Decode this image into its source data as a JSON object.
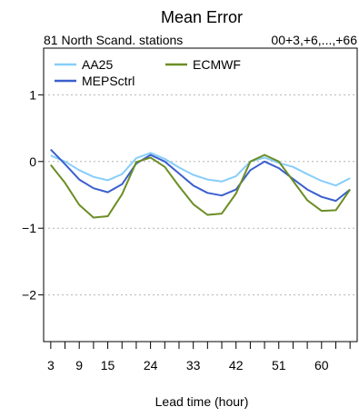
{
  "chart_data": {
    "type": "line",
    "title": "Mean Error",
    "subtitle_left": "81 North Scand. stations",
    "subtitle_right": "00+3,+6,...,+66",
    "xlabel": "Lead time (hour)",
    "ylabel": "",
    "xlim": [
      1.5,
      67.5
    ],
    "ylim": [
      -2.7,
      1.7
    ],
    "x_ticks": [
      3,
      6,
      9,
      12,
      15,
      18,
      21,
      24,
      27,
      30,
      33,
      36,
      39,
      42,
      45,
      48,
      51,
      54,
      57,
      60,
      63,
      66
    ],
    "x_tick_labels": [
      {
        "x": 3,
        "label": "3"
      },
      {
        "x": 9,
        "label": "9"
      },
      {
        "x": 15,
        "label": "15"
      },
      {
        "x": 24,
        "label": "24"
      },
      {
        "x": 33,
        "label": "33"
      },
      {
        "x": 42,
        "label": "42"
      },
      {
        "x": 51,
        "label": "51"
      },
      {
        "x": 60,
        "label": "60"
      }
    ],
    "y_ticks": [
      {
        "y": 1,
        "label": "1"
      },
      {
        "y": 0,
        "label": "0"
      },
      {
        "y": -1,
        "label": "−1"
      },
      {
        "y": -2,
        "label": "−2"
      }
    ],
    "grid": "horizontal dotted",
    "legend_position": "top-left",
    "x": [
      3,
      6,
      9,
      12,
      15,
      18,
      21,
      24,
      27,
      30,
      33,
      36,
      39,
      42,
      45,
      48,
      51,
      54,
      57,
      60,
      63,
      66
    ],
    "series": [
      {
        "name": "AA25",
        "color": "#87cefa",
        "legend_col": 0,
        "legend_row": 0,
        "values": [
          0.09,
          0.0,
          -0.13,
          -0.23,
          -0.28,
          -0.19,
          0.05,
          0.13,
          0.04,
          -0.09,
          -0.2,
          -0.27,
          -0.3,
          -0.22,
          0.0,
          0.06,
          -0.02,
          -0.08,
          -0.19,
          -0.29,
          -0.36,
          -0.25
        ]
      },
      {
        "name": "MEPSctrl",
        "color": "#3a5fcd",
        "legend_col": 0,
        "legend_row": 1,
        "values": [
          0.18,
          -0.04,
          -0.27,
          -0.4,
          -0.46,
          -0.34,
          -0.03,
          0.1,
          0.0,
          -0.18,
          -0.36,
          -0.47,
          -0.51,
          -0.42,
          -0.13,
          0.0,
          -0.1,
          -0.26,
          -0.42,
          -0.53,
          -0.59,
          -0.42
        ]
      },
      {
        "name": "ECMWF",
        "color": "#6b8e23",
        "legend_col": 1,
        "legend_row": 0,
        "values": [
          -0.05,
          -0.32,
          -0.65,
          -0.84,
          -0.82,
          -0.49,
          -0.01,
          0.06,
          -0.08,
          -0.37,
          -0.64,
          -0.8,
          -0.78,
          -0.48,
          0.0,
          0.1,
          0.0,
          -0.29,
          -0.58,
          -0.74,
          -0.73,
          -0.42
        ]
      }
    ]
  }
}
